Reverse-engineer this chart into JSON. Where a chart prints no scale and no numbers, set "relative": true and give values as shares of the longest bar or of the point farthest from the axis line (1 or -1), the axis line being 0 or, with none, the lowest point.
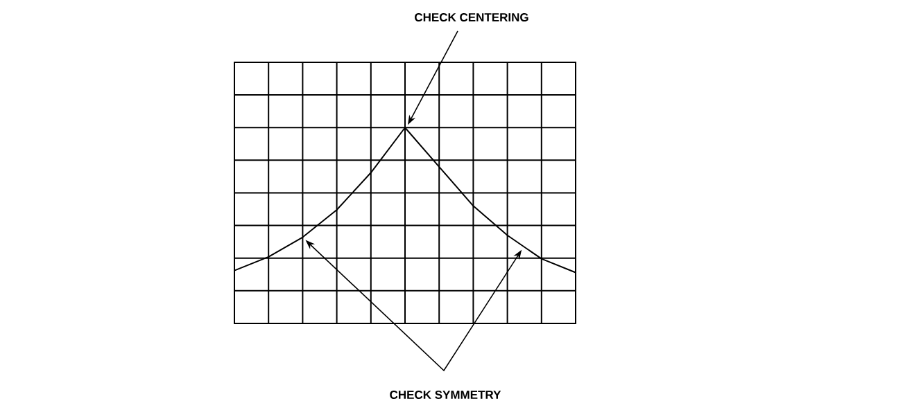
{
  "chart_data": {
    "type": "line",
    "relative": true,
    "grid": true,
    "tick_labels": false,
    "marker": "none",
    "line_style": "solid",
    "color": "#000000",
    "categories": [
      null,
      null,
      null,
      null,
      null,
      null,
      null,
      null,
      null,
      null,
      null
    ],
    "values": [
      0.27,
      0.34,
      0.44,
      0.58,
      0.77,
      1,
      0.8,
      0.6,
      0.45,
      0.33,
      0.26
    ],
    "annotations": [
      "CHECK CENTERING",
      "CHECK SYMMETRY"
    ]
  }
}
